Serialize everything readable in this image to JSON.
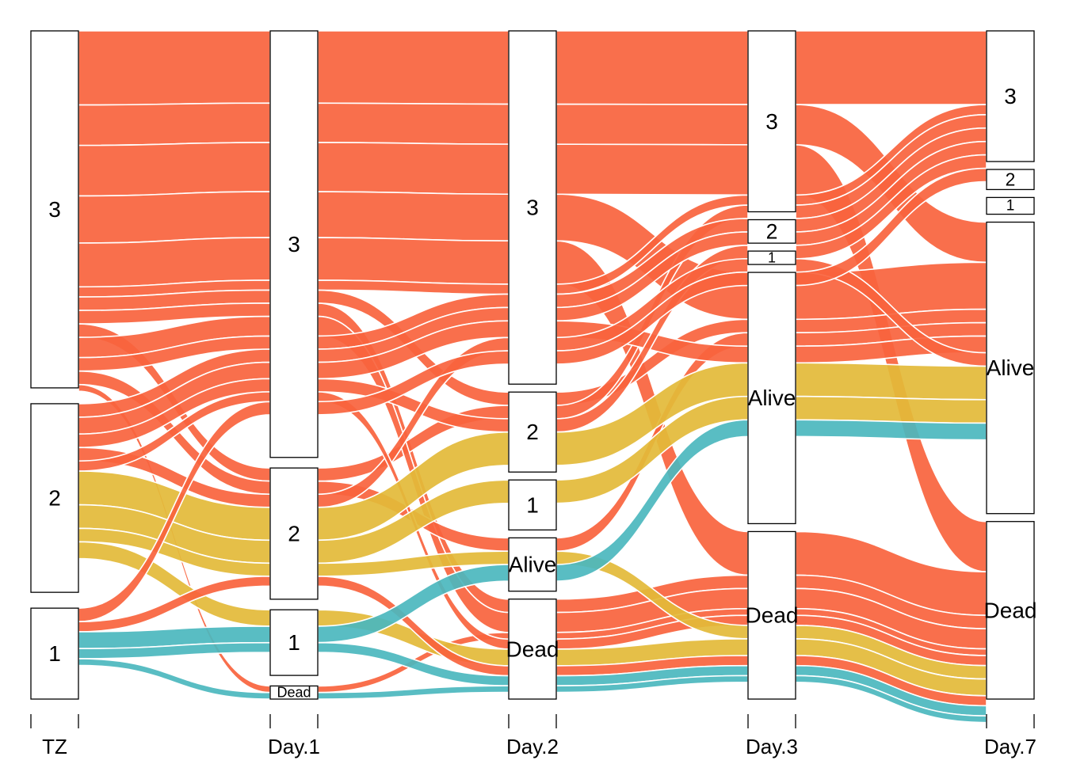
{
  "chart_data": {
    "type": "alluvial",
    "title": "",
    "xlabel": "",
    "ylabel": "",
    "axes": [
      "TZ",
      "Day.1",
      "Day.2",
      "Day.3",
      "Day.7"
    ],
    "colors": {
      "3": "#F8633D",
      "2": "#E3BA38",
      "1": "#4BB7BE",
      "stroke": "#000000"
    },
    "strata": [
      {
        "axis": "TZ",
        "levels": [
          {
            "label": "3",
            "value": 53
          },
          {
            "label": "2",
            "value": 28
          },
          {
            "label": "1",
            "value": 13.5
          }
        ]
      },
      {
        "axis": "Day.1",
        "levels": [
          {
            "label": "3",
            "value": 65
          },
          {
            "label": "2",
            "value": 20
          },
          {
            "label": "1",
            "value": 10
          },
          {
            "label": "Dead",
            "value": 2
          }
        ]
      },
      {
        "axis": "Day.2",
        "levels": [
          {
            "label": "3",
            "value": 53
          },
          {
            "label": "2",
            "value": 12
          },
          {
            "label": "1",
            "value": 7.5
          },
          {
            "label": "Alive",
            "value": 8
          },
          {
            "label": "Dead",
            "value": 15
          }
        ]
      },
      {
        "axis": "Day.3",
        "levels": [
          {
            "label": "3",
            "value": 27
          },
          {
            "label": "2",
            "value": 3.5
          },
          {
            "label": "1",
            "value": 2
          },
          {
            "label": "Alive",
            "value": 37.5
          },
          {
            "label": "Dead",
            "value": 25
          }
        ]
      },
      {
        "axis": "Day.7",
        "levels": [
          {
            "label": "3",
            "value": 19.5
          },
          {
            "label": "2",
            "value": 3
          },
          {
            "label": "1",
            "value": 2.5
          },
          {
            "label": "Alive",
            "value": 43.5
          },
          {
            "label": "Dead",
            "value": 26.5
          }
        ]
      }
    ],
    "flows": [
      {
        "color": "3",
        "value": 11,
        "path": [
          "3",
          "3",
          "3",
          "3",
          "3"
        ]
      },
      {
        "color": "3",
        "value": 6,
        "path": [
          "3",
          "3",
          "3",
          "3",
          "Alive"
        ]
      },
      {
        "color": "3",
        "value": 7.5,
        "path": [
          "3",
          "3",
          "3",
          "3",
          "Dead"
        ]
      },
      {
        "color": "3",
        "value": 7,
        "path": [
          "3",
          "3",
          "3",
          "Alive",
          "Alive"
        ]
      },
      {
        "color": "3",
        "value": 6.5,
        "path": [
          "3",
          "3",
          "3",
          "Dead",
          "Dead"
        ]
      },
      {
        "color": "3",
        "value": 1.5,
        "path": [
          "3",
          "3",
          "3",
          "3",
          "3"
        ]
      },
      {
        "color": "3",
        "value": 2,
        "path": [
          "3",
          "3",
          "2",
          "Alive",
          "Alive"
        ]
      },
      {
        "color": "3",
        "value": 2,
        "path": [
          "3",
          "3",
          "Dead",
          "Dead",
          "Dead"
        ]
      },
      {
        "color": "3",
        "value": 2,
        "path": [
          "3",
          "2",
          "2",
          "3",
          "3"
        ]
      },
      {
        "color": "3",
        "value": 3,
        "path": [
          "3",
          "3",
          "Dead",
          "Dead",
          "Dead"
        ]
      },
      {
        "color": "3",
        "value": 2,
        "path": [
          "3",
          "3",
          "3",
          "3",
          "3"
        ]
      },
      {
        "color": "3",
        "value": 2,
        "path": [
          "3",
          "2",
          "Alive",
          "Alive",
          "Alive"
        ]
      },
      {
        "color": "3",
        "value": 1,
        "path": [
          "3",
          "Dead",
          "Dead",
          "Dead",
          "Dead"
        ]
      },
      {
        "color": "3",
        "value": 2,
        "path": [
          "2",
          "3",
          "3",
          "3",
          "3"
        ]
      },
      {
        "color": "3",
        "value": 2.5,
        "path": [
          "2",
          "3",
          "3",
          "Alive",
          "Alive"
        ]
      },
      {
        "color": "3",
        "value": 2,
        "path": [
          "2",
          "3",
          "2",
          "3",
          "3"
        ]
      },
      {
        "color": "3",
        "value": 2,
        "path": [
          "2",
          "2",
          "3",
          "3",
          "Alive"
        ]
      },
      {
        "color": "3",
        "value": 1.5,
        "path": [
          "2",
          "3",
          "Dead",
          "Dead",
          "Dead"
        ]
      },
      {
        "color": "2",
        "value": 5,
        "path": [
          "2",
          "2",
          "2",
          "Alive",
          "Alive"
        ]
      },
      {
        "color": "2",
        "value": 3.5,
        "path": [
          "2",
          "2",
          "1",
          "Alive",
          "Alive"
        ]
      },
      {
        "color": "2",
        "value": 2,
        "path": [
          "2",
          "2",
          "Alive",
          "Dead",
          "Dead"
        ]
      },
      {
        "color": "2",
        "value": 2.5,
        "path": [
          "2",
          "1",
          "Dead",
          "Dead",
          "Dead"
        ]
      },
      {
        "color": "3",
        "value": 2,
        "path": [
          "1",
          "3",
          "3",
          "3",
          "3"
        ]
      },
      {
        "color": "3",
        "value": 1.5,
        "path": [
          "1",
          "2",
          "Dead",
          "Dead",
          "Dead"
        ]
      },
      {
        "color": "1",
        "value": 2.5,
        "path": [
          "1",
          "1",
          "Alive",
          "Alive",
          "Alive"
        ]
      },
      {
        "color": "1",
        "value": 1.5,
        "path": [
          "1",
          "1",
          "Dead",
          "Dead",
          "Dead"
        ]
      },
      {
        "color": "1",
        "value": 1,
        "path": [
          "1",
          "Dead",
          "Dead",
          "Dead",
          "Dead"
        ]
      }
    ]
  }
}
